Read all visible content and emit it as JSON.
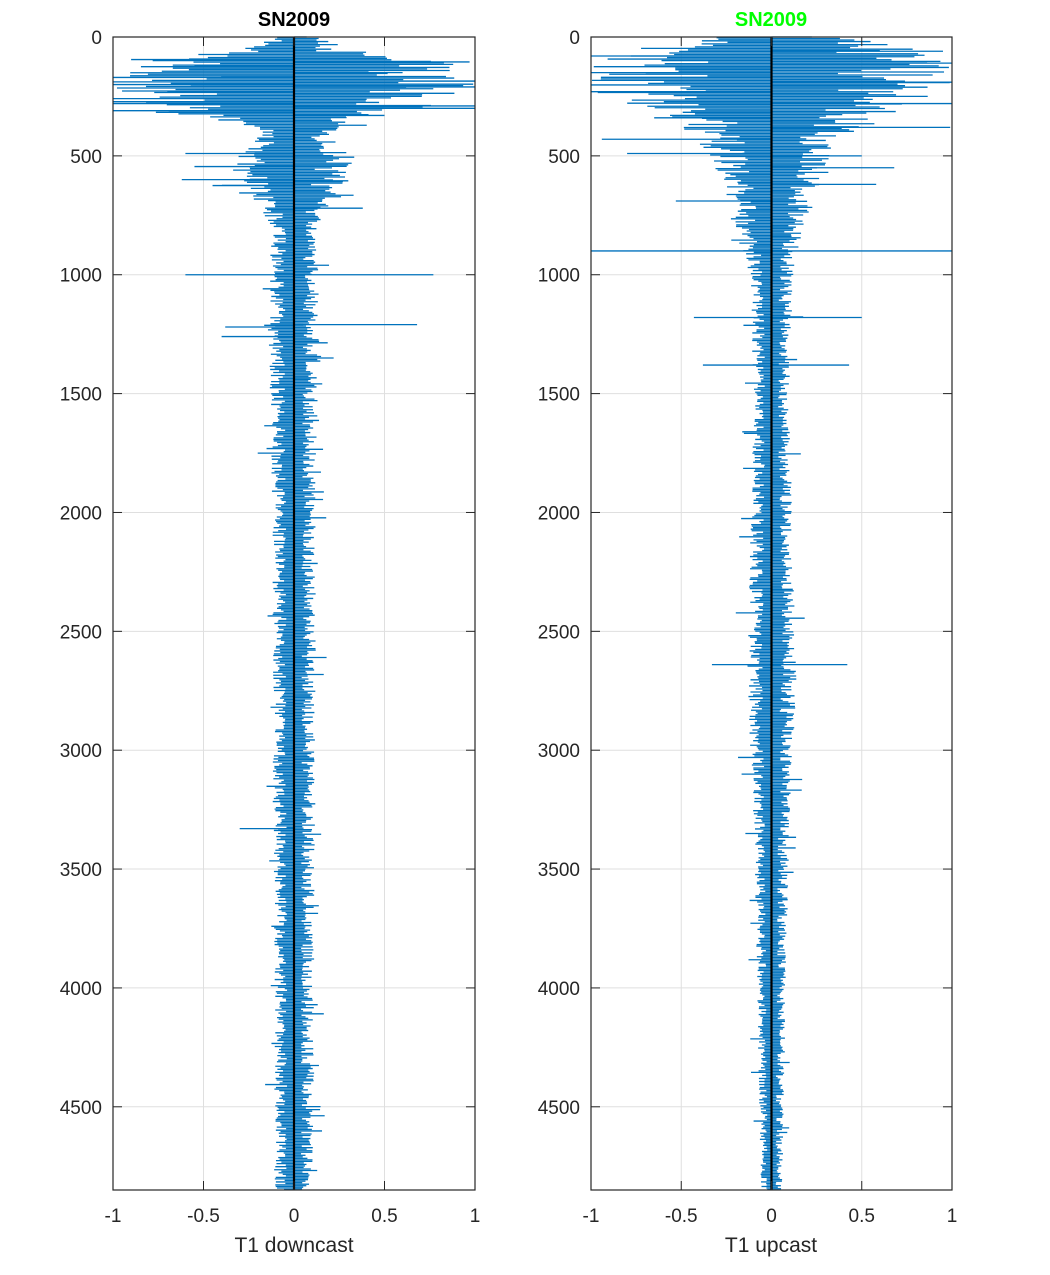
{
  "chart_data": [
    {
      "type": "line",
      "title": "SN2009",
      "title_color": "#000000",
      "xlabel": "T1 downcast",
      "ylabel": "",
      "xlim": [
        -1,
        1
      ],
      "ylim": [
        0,
        4850
      ],
      "y_reversed": true,
      "grid": true,
      "xticks": [
        -1,
        -0.5,
        0,
        0.5,
        1
      ],
      "xtick_labels": [
        "-1",
        "-0.5",
        "0",
        "0.5",
        "1"
      ],
      "yticks": [
        0,
        500,
        1000,
        1500,
        2000,
        2500,
        3000,
        3500,
        4000,
        4500
      ],
      "ytick_labels": [
        "0",
        "500",
        "1000",
        "1500",
        "2000",
        "2500",
        "3000",
        "3500",
        "4000",
        "4500"
      ],
      "series_color": "#0072BD",
      "zero_line_color": "#000000",
      "profile": [
        {
          "depth": 0,
          "amp": 0.12
        },
        {
          "depth": 60,
          "amp": 0.35
        },
        {
          "depth": 100,
          "amp": 0.95
        },
        {
          "depth": 200,
          "amp": 1.0
        },
        {
          "depth": 300,
          "amp": 0.95
        },
        {
          "depth": 360,
          "amp": 0.3
        },
        {
          "depth": 420,
          "amp": 0.2
        },
        {
          "depth": 500,
          "amp": 0.35
        },
        {
          "depth": 650,
          "amp": 0.25
        },
        {
          "depth": 800,
          "amp": 0.12
        },
        {
          "depth": 1000,
          "amp": 0.14
        },
        {
          "depth": 1300,
          "amp": 0.14
        },
        {
          "depth": 2000,
          "amp": 0.12
        },
        {
          "depth": 3000,
          "amp": 0.12
        },
        {
          "depth": 4000,
          "amp": 0.11
        },
        {
          "depth": 4850,
          "amp": 0.11
        }
      ],
      "spikes": [
        {
          "depth": 95,
          "value": -0.9
        },
        {
          "depth": 105,
          "value": 0.97
        },
        {
          "depth": 120,
          "value": -0.55
        },
        {
          "depth": 150,
          "value": 0.6
        },
        {
          "depth": 170,
          "value": -1.0
        },
        {
          "depth": 185,
          "value": 1.0
        },
        {
          "depth": 200,
          "value": -1.0
        },
        {
          "depth": 210,
          "value": 1.0
        },
        {
          "depth": 230,
          "value": -0.7
        },
        {
          "depth": 280,
          "value": -1.0
        },
        {
          "depth": 290,
          "value": 1.0
        },
        {
          "depth": 300,
          "value": 1.0
        },
        {
          "depth": 310,
          "value": -1.0
        },
        {
          "depth": 330,
          "value": 0.5
        },
        {
          "depth": 490,
          "value": -0.6
        },
        {
          "depth": 545,
          "value": -0.55
        },
        {
          "depth": 600,
          "value": -0.62
        },
        {
          "depth": 605,
          "value": 0.3
        },
        {
          "depth": 625,
          "value": -0.45
        },
        {
          "depth": 720,
          "value": 0.38
        },
        {
          "depth": 1000,
          "value": -0.6
        },
        {
          "depth": 1000,
          "value": 0.77
        },
        {
          "depth": 1210,
          "value": 0.68
        },
        {
          "depth": 1220,
          "value": -0.38
        },
        {
          "depth": 1260,
          "value": -0.4
        },
        {
          "depth": 2610,
          "value": 0.18
        },
        {
          "depth": 3330,
          "value": -0.3
        }
      ]
    },
    {
      "type": "line",
      "title": "SN2009",
      "title_color": "#00FF00",
      "xlabel": "T1 upcast",
      "ylabel": "",
      "xlim": [
        -1,
        1
      ],
      "ylim": [
        0,
        4850
      ],
      "y_reversed": true,
      "grid": true,
      "xticks": [
        -1,
        -0.5,
        0,
        0.5,
        1
      ],
      "xtick_labels": [
        "-1",
        "-0.5",
        "0",
        "0.5",
        "1"
      ],
      "yticks": [
        0,
        500,
        1000,
        1500,
        2000,
        2500,
        3000,
        3500,
        4000,
        4500
      ],
      "ytick_labels": [
        "0",
        "500",
        "1000",
        "1500",
        "2000",
        "2500",
        "3000",
        "3500",
        "4000",
        "4500"
      ],
      "series_color": "#0072BD",
      "zero_line_color": "#000000",
      "profile": [
        {
          "depth": 0,
          "amp": 0.4
        },
        {
          "depth": 50,
          "amp": 0.8
        },
        {
          "depth": 100,
          "amp": 1.0
        },
        {
          "depth": 250,
          "amp": 1.0
        },
        {
          "depth": 350,
          "amp": 0.55
        },
        {
          "depth": 450,
          "amp": 0.4
        },
        {
          "depth": 600,
          "amp": 0.3
        },
        {
          "depth": 800,
          "amp": 0.2
        },
        {
          "depth": 1000,
          "amp": 0.12
        },
        {
          "depth": 1500,
          "amp": 0.1
        },
        {
          "depth": 2200,
          "amp": 0.12
        },
        {
          "depth": 2700,
          "amp": 0.14
        },
        {
          "depth": 3300,
          "amp": 0.1
        },
        {
          "depth": 4000,
          "amp": 0.08
        },
        {
          "depth": 4850,
          "amp": 0.06
        }
      ],
      "spikes": [
        {
          "depth": 60,
          "value": 0.95
        },
        {
          "depth": 80,
          "value": -1.0
        },
        {
          "depth": 110,
          "value": 1.0
        },
        {
          "depth": 150,
          "value": -1.0
        },
        {
          "depth": 190,
          "value": 1.0
        },
        {
          "depth": 230,
          "value": -1.0
        },
        {
          "depth": 280,
          "value": 1.0
        },
        {
          "depth": 340,
          "value": -0.65
        },
        {
          "depth": 380,
          "value": 0.99
        },
        {
          "depth": 430,
          "value": -0.94
        },
        {
          "depth": 490,
          "value": -0.8
        },
        {
          "depth": 500,
          "value": 0.5
        },
        {
          "depth": 550,
          "value": 0.68
        },
        {
          "depth": 620,
          "value": 0.58
        },
        {
          "depth": 690,
          "value": -0.53
        },
        {
          "depth": 900,
          "value": -1.0
        },
        {
          "depth": 900,
          "value": 1.0
        },
        {
          "depth": 1180,
          "value": -0.43
        },
        {
          "depth": 1180,
          "value": 0.5
        },
        {
          "depth": 1380,
          "value": -0.38
        },
        {
          "depth": 1380,
          "value": 0.43
        },
        {
          "depth": 2640,
          "value": -0.33
        },
        {
          "depth": 2640,
          "value": 0.42
        }
      ]
    }
  ]
}
